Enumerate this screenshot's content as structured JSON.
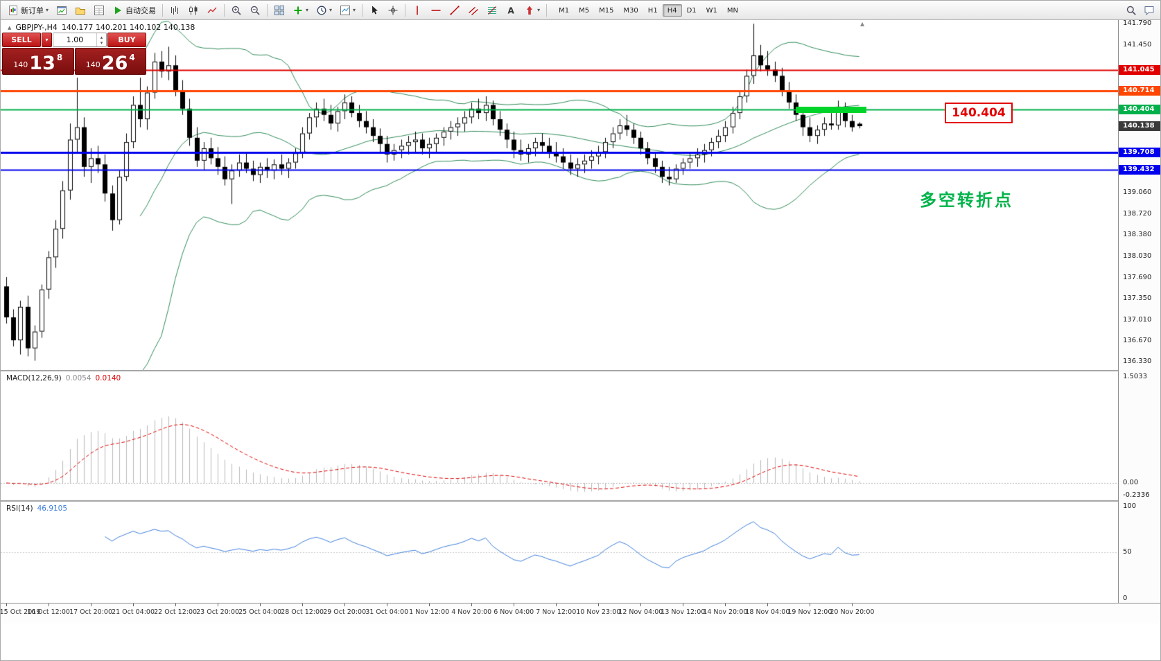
{
  "glyphs": {
    "caret_down": "▾",
    "caret_up": "▴",
    "triangle_up": "▲",
    "quote_marker": "▲"
  },
  "toolbar": {
    "buttons_left": [
      {
        "id": "new-order",
        "icon": "new-order",
        "label": "新订单",
        "caret": true
      },
      {
        "id": "charts",
        "icon": "chart-window"
      },
      {
        "id": "profiles",
        "icon": "profiles"
      },
      {
        "id": "market-watch",
        "icon": "data-window"
      },
      {
        "id": "autotrading",
        "icon": "play",
        "label": "自动交易"
      },
      {
        "id": "sep"
      },
      {
        "id": "bar-chart-mode",
        "icon": "bars"
      },
      {
        "id": "candle-chart-mode",
        "icon": "candles"
      },
      {
        "id": "line-chart-mode",
        "icon": "line"
      },
      {
        "id": "sep"
      },
      {
        "id": "zoom-in",
        "icon": "zoom-in"
      },
      {
        "id": "zoom-out",
        "icon": "zoom-out"
      },
      {
        "id": "sep"
      },
      {
        "id": "tile-windows",
        "icon": "grid"
      },
      {
        "id": "indicators",
        "icon": "indicators",
        "caret": true
      },
      {
        "id": "periods",
        "icon": "clock",
        "caret": true
      },
      {
        "id": "templates",
        "icon": "templates",
        "caret": true
      },
      {
        "id": "sep"
      },
      {
        "id": "cursor",
        "icon": "cursor"
      },
      {
        "id": "crosshair",
        "icon": "crosshair"
      },
      {
        "id": "sep"
      },
      {
        "id": "vertical-line",
        "icon": "vline"
      },
      {
        "id": "horizontal-line",
        "icon": "hline"
      },
      {
        "id": "trendline",
        "icon": "trendline"
      },
      {
        "id": "equidistant-channel",
        "icon": "channel"
      },
      {
        "id": "fibonacci",
        "icon": "fibonacci"
      },
      {
        "id": "text-label",
        "icon": "text"
      },
      {
        "id": "arrows",
        "icon": "arrow",
        "caret": true
      },
      {
        "id": "sep"
      }
    ],
    "timeframes": [
      "M1",
      "M5",
      "M15",
      "M30",
      "H1",
      "H4",
      "D1",
      "W1",
      "MN"
    ],
    "active_timeframe": "H4",
    "buttons_right": [
      {
        "id": "search",
        "icon": "search"
      },
      {
        "id": "chat",
        "icon": "chat"
      }
    ]
  },
  "quote": {
    "symbol_period": "GBPJPY-,H4",
    "ohlc": "140.177 140.201 140.102 140.138"
  },
  "trade_panel": {
    "sell_label": "SELL",
    "buy_label": "BUY",
    "volume": "1.00",
    "sell_price_small": "140",
    "sell_price_big": "13",
    "sell_price_sup": "8",
    "buy_price_small": "140",
    "buy_price_big": "26",
    "buy_price_sup": "4"
  },
  "hlines": [
    {
      "id": "resistance-upper",
      "price": 141.045,
      "label": "141.045",
      "color": "#e00000",
      "width": 2
    },
    {
      "id": "resistance-lower",
      "price": 140.714,
      "label": "140.714",
      "color": "#ff4500",
      "width": 3
    },
    {
      "id": "pivot-line",
      "price": 140.404,
      "label": "140.404",
      "color": "#00b04a",
      "width": 2
    },
    {
      "id": "support-upper",
      "price": 139.708,
      "label": "139.708",
      "color": "#0000ee",
      "width": 3
    },
    {
      "id": "support-lower",
      "price": 139.432,
      "label": "139.432",
      "color": "#0000ee",
      "width": 2
    }
  ],
  "current_price": {
    "value": 140.138,
    "label": "140.138",
    "color": "#3a3a3a"
  },
  "price_axis": {
    "ticks": [
      141.79,
      141.45,
      139.06,
      138.72,
      138.38,
      138.03,
      137.69,
      137.35,
      137.01,
      136.67,
      136.33
    ]
  },
  "annotations": {
    "pivot_callout": "140.404",
    "callout_color": "#e30000",
    "note": "多空转折点",
    "note_color": "#00b44a",
    "highlight": {
      "from_index": 112,
      "to_index": 122,
      "color": "#00d42a",
      "price": 140.404
    }
  },
  "macd_panel": {
    "title": "MACD(12,26,9)",
    "value_main": "0.0054",
    "value_signal": "0.0140",
    "axis_max": "1.5033",
    "axis_zero": "0.00",
    "axis_min": "-0.2336",
    "range": [
      -0.2336,
      1.5033
    ],
    "histogram_color": "#b8b8b8",
    "signal_color": "#e00000"
  },
  "rsi_panel": {
    "title": "RSI(14)",
    "value": "46.9105",
    "axis_top": "100",
    "axis_mid": "50",
    "axis_bottom": "0",
    "color": "#3d7edb"
  },
  "chart_data": {
    "type": "candlestick",
    "symbol": "GBPJPY-",
    "period": "H4",
    "y_range": [
      136.2,
      141.85
    ],
    "label_interval": 6,
    "x_labels": [
      "15 Oct 2019",
      "16 Oct 12:00",
      "17 Oct 20:00",
      "21 Oct 04:00",
      "22 Oct 12:00",
      "23 Oct 20:00",
      "25 Oct 04:00",
      "28 Oct 12:00",
      "29 Oct 20:00",
      "31 Oct 04:00",
      "1 Nov 12:00",
      "4 Nov 20:00",
      "6 Nov 04:00",
      "7 Nov 12:00",
      "10 Nov 23:00",
      "12 Nov 04:00",
      "13 Nov 12:00",
      "14 Nov 20:00",
      "18 Nov 04:00",
      "19 Nov 12:00",
      "20 Nov 20:00"
    ],
    "bollinger": {
      "period": 20,
      "deviation": 2,
      "color": "#2e8b57"
    },
    "ohlc": [
      [
        137.55,
        137.7,
        136.95,
        137.05
      ],
      [
        137.05,
        137.18,
        136.58,
        136.68
      ],
      [
        136.68,
        137.32,
        136.45,
        137.22
      ],
      [
        137.22,
        137.4,
        136.42,
        136.55
      ],
      [
        136.55,
        136.92,
        136.35,
        136.82
      ],
      [
        136.82,
        137.58,
        136.72,
        137.5
      ],
      [
        137.5,
        138.12,
        137.35,
        138.02
      ],
      [
        138.02,
        138.62,
        137.85,
        138.48
      ],
      [
        138.48,
        139.25,
        138.32,
        139.1
      ],
      [
        139.1,
        140.18,
        138.95,
        139.92
      ],
      [
        139.92,
        140.92,
        139.72,
        140.12
      ],
      [
        140.12,
        140.28,
        139.32,
        139.48
      ],
      [
        139.48,
        139.78,
        139.22,
        139.62
      ],
      [
        139.62,
        139.82,
        139.38,
        139.52
      ],
      [
        139.52,
        139.68,
        138.92,
        139.05
      ],
      [
        139.05,
        139.18,
        138.45,
        138.62
      ],
      [
        138.62,
        139.42,
        138.55,
        139.32
      ],
      [
        139.32,
        140.02,
        139.25,
        139.88
      ],
      [
        139.88,
        140.62,
        139.78,
        140.48
      ],
      [
        140.48,
        140.92,
        140.12,
        140.25
      ],
      [
        140.25,
        140.78,
        140.08,
        140.68
      ],
      [
        140.68,
        141.32,
        140.58,
        141.18
      ],
      [
        141.18,
        141.35,
        140.92,
        141.02
      ],
      [
        141.02,
        141.42,
        140.88,
        141.12
      ],
      [
        141.12,
        141.28,
        140.62,
        140.72
      ],
      [
        140.72,
        140.88,
        140.32,
        140.42
      ],
      [
        140.42,
        140.58,
        139.82,
        139.95
      ],
      [
        139.95,
        140.12,
        139.48,
        139.58
      ],
      [
        139.58,
        139.88,
        139.42,
        139.78
      ],
      [
        139.78,
        139.95,
        139.52,
        139.62
      ],
      [
        139.62,
        139.8,
        139.35,
        139.48
      ],
      [
        139.48,
        139.65,
        139.18,
        139.28
      ],
      [
        139.28,
        139.52,
        138.88,
        139.42
      ],
      [
        139.42,
        139.68,
        139.32,
        139.55
      ],
      [
        139.55,
        139.72,
        139.38,
        139.45
      ],
      [
        139.45,
        139.58,
        139.25,
        139.35
      ],
      [
        139.35,
        139.55,
        139.22,
        139.48
      ],
      [
        139.48,
        139.62,
        139.3,
        139.42
      ],
      [
        139.42,
        139.6,
        139.28,
        139.52
      ],
      [
        139.52,
        139.68,
        139.35,
        139.45
      ],
      [
        139.45,
        139.62,
        139.3,
        139.55
      ],
      [
        139.55,
        139.78,
        139.45,
        139.7
      ],
      [
        139.7,
        140.12,
        139.62,
        140.02
      ],
      [
        140.02,
        140.35,
        139.92,
        140.28
      ],
      [
        140.28,
        140.52,
        140.12,
        140.42
      ],
      [
        140.42,
        140.58,
        140.22,
        140.32
      ],
      [
        140.32,
        140.48,
        140.08,
        140.18
      ],
      [
        140.18,
        140.45,
        140.05,
        140.38
      ],
      [
        140.38,
        140.65,
        140.25,
        140.52
      ],
      [
        140.52,
        140.62,
        140.28,
        140.35
      ],
      [
        140.35,
        140.48,
        140.12,
        140.22
      ],
      [
        140.22,
        140.38,
        140.02,
        140.12
      ],
      [
        140.12,
        140.25,
        139.88,
        139.98
      ],
      [
        139.98,
        140.1,
        139.72,
        139.85
      ],
      [
        139.85,
        139.98,
        139.55,
        139.68
      ],
      [
        139.68,
        139.85,
        139.58,
        139.75
      ],
      [
        139.75,
        139.92,
        139.62,
        139.82
      ],
      [
        139.82,
        139.98,
        139.68,
        139.88
      ],
      [
        139.88,
        140.05,
        139.72,
        139.92
      ],
      [
        139.92,
        140.02,
        139.68,
        139.78
      ],
      [
        139.78,
        139.95,
        139.62,
        139.85
      ],
      [
        139.85,
        140.02,
        139.72,
        139.95
      ],
      [
        139.95,
        140.12,
        139.82,
        140.05
      ],
      [
        140.05,
        140.22,
        139.92,
        140.12
      ],
      [
        140.12,
        140.28,
        139.98,
        140.18
      ],
      [
        140.18,
        140.38,
        140.05,
        140.28
      ],
      [
        140.28,
        140.52,
        140.18,
        140.42
      ],
      [
        140.42,
        140.58,
        140.25,
        140.35
      ],
      [
        140.35,
        140.62,
        140.22,
        140.48
      ],
      [
        140.48,
        140.55,
        140.15,
        140.25
      ],
      [
        140.25,
        140.38,
        139.98,
        140.08
      ],
      [
        140.08,
        140.18,
        139.78,
        139.92
      ],
      [
        139.92,
        140.05,
        139.62,
        139.75
      ],
      [
        139.75,
        139.92,
        139.58,
        139.68
      ],
      [
        139.68,
        139.85,
        139.55,
        139.78
      ],
      [
        139.78,
        139.95,
        139.65,
        139.88
      ],
      [
        139.88,
        140.02,
        139.72,
        139.82
      ],
      [
        139.82,
        139.95,
        139.62,
        139.72
      ],
      [
        139.72,
        139.88,
        139.55,
        139.65
      ],
      [
        139.65,
        139.78,
        139.45,
        139.55
      ],
      [
        139.55,
        139.68,
        139.35,
        139.45
      ],
      [
        139.45,
        139.62,
        139.32,
        139.52
      ],
      [
        139.52,
        139.68,
        139.38,
        139.58
      ],
      [
        139.58,
        139.75,
        139.45,
        139.65
      ],
      [
        139.65,
        139.82,
        139.52,
        139.72
      ],
      [
        139.72,
        139.95,
        139.62,
        139.88
      ],
      [
        139.88,
        140.12,
        139.78,
        140.02
      ],
      [
        140.02,
        140.25,
        139.92,
        140.15
      ],
      [
        140.15,
        140.32,
        139.98,
        140.08
      ],
      [
        140.08,
        140.18,
        139.85,
        139.95
      ],
      [
        139.95,
        140.05,
        139.68,
        139.78
      ],
      [
        139.78,
        139.88,
        139.52,
        139.62
      ],
      [
        139.62,
        139.72,
        139.38,
        139.48
      ],
      [
        139.48,
        139.58,
        139.22,
        139.32
      ],
      [
        139.32,
        139.48,
        139.18,
        139.28
      ],
      [
        139.28,
        139.52,
        139.22,
        139.45
      ],
      [
        139.45,
        139.62,
        139.35,
        139.55
      ],
      [
        139.55,
        139.72,
        139.45,
        139.62
      ],
      [
        139.62,
        139.78,
        139.48,
        139.68
      ],
      [
        139.68,
        139.85,
        139.55,
        139.75
      ],
      [
        139.75,
        139.95,
        139.65,
        139.88
      ],
      [
        139.88,
        140.08,
        139.78,
        139.98
      ],
      [
        139.98,
        140.22,
        139.88,
        140.12
      ],
      [
        140.12,
        140.45,
        140.02,
        140.35
      ],
      [
        140.35,
        140.72,
        140.25,
        140.62
      ],
      [
        140.62,
        141.05,
        140.52,
        140.95
      ],
      [
        140.95,
        141.79,
        140.82,
        141.28
      ],
      [
        141.28,
        141.45,
        141.02,
        141.12
      ],
      [
        141.12,
        141.35,
        140.95,
        141.05
      ],
      [
        141.05,
        141.18,
        140.85,
        140.95
      ],
      [
        140.95,
        141.08,
        140.62,
        140.72
      ],
      [
        140.72,
        140.85,
        140.42,
        140.52
      ],
      [
        140.52,
        140.65,
        140.22,
        140.32
      ],
      [
        140.32,
        140.42,
        139.98,
        140.12
      ],
      [
        140.12,
        140.28,
        139.88,
        139.98
      ],
      [
        139.98,
        140.15,
        139.85,
        140.08
      ],
      [
        140.08,
        140.28,
        139.98,
        140.18
      ],
      [
        140.18,
        140.35,
        140.08,
        140.15
      ],
      [
        140.15,
        140.55,
        140.08,
        140.45
      ],
      [
        140.45,
        140.52,
        140.12,
        140.22
      ],
      [
        140.22,
        140.32,
        140.05,
        140.12
      ],
      [
        140.177,
        140.201,
        140.102,
        140.138
      ]
    ]
  }
}
